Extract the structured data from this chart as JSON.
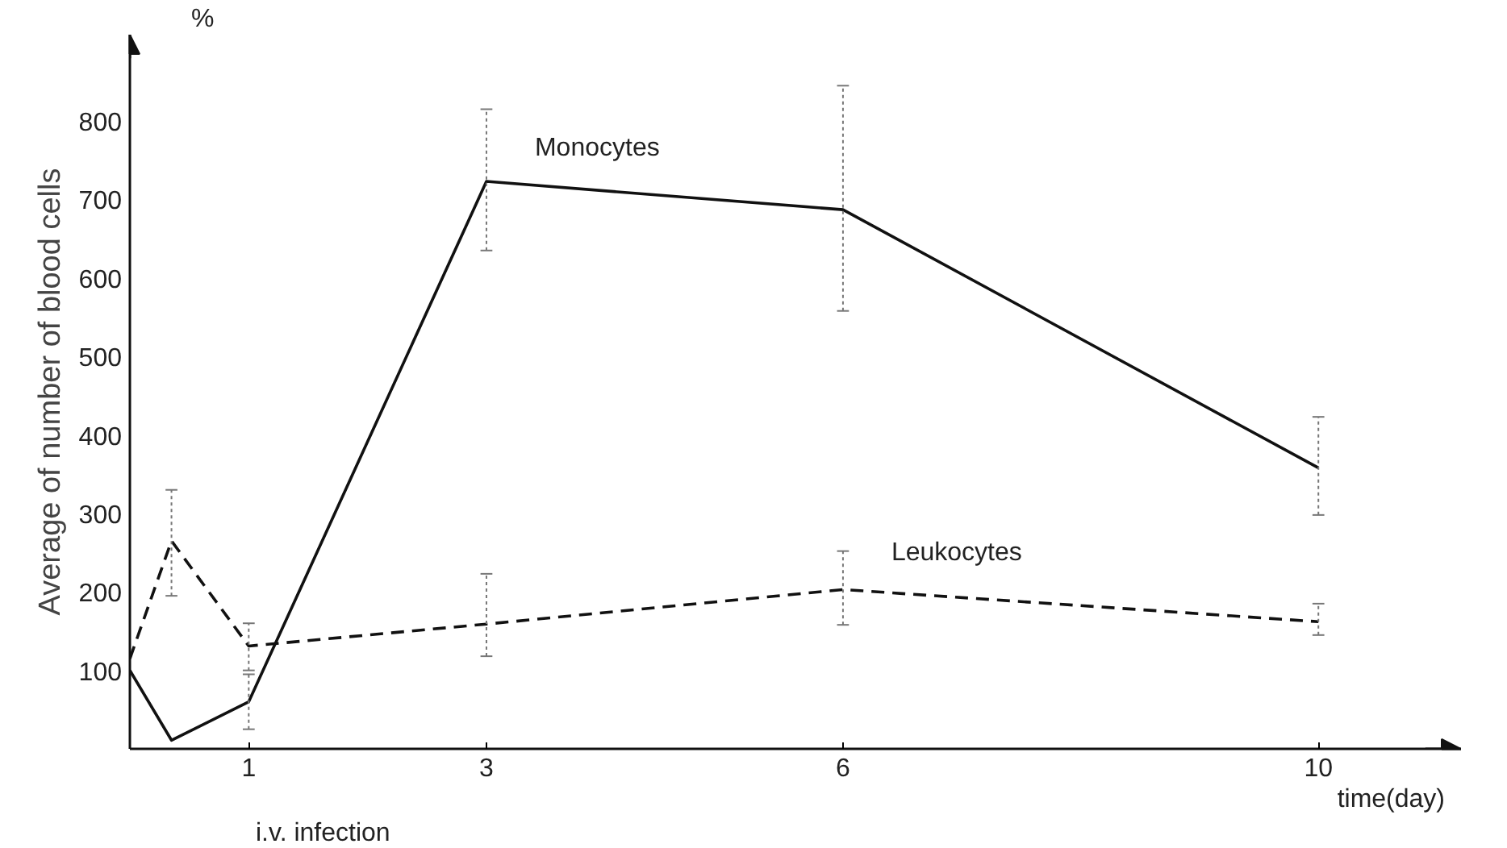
{
  "chart_data": {
    "type": "line",
    "xlabel": "time(day)",
    "ylabel": "Average of number of blood cells",
    "annotations": [
      "%",
      "i.v. infection"
    ],
    "xlim": [
      0,
      11.2
    ],
    "ylim": [
      0,
      910
    ],
    "xticks": [
      1,
      3,
      6,
      10
    ],
    "yticks": [
      100,
      200,
      300,
      400,
      500,
      600,
      700,
      800
    ],
    "grid": false,
    "marker": "none",
    "series": [
      {
        "name": "Monocytes",
        "color": "#111111",
        "line_style": "solid",
        "x": [
          0,
          0.35,
          1,
          3,
          6,
          10
        ],
        "values": [
          100,
          11,
          60,
          723,
          687,
          358
        ],
        "errors": [
          null,
          null,
          [
            25,
            95
          ],
          [
            635,
            815
          ],
          [
            558,
            845
          ],
          [
            298,
            423
          ]
        ]
      },
      {
        "name": "Leukocytes",
        "color": "#111111",
        "line_style": "dashed",
        "x": [
          0,
          0.35,
          1,
          3,
          6,
          10
        ],
        "values": [
          115,
          265,
          131,
          159,
          203,
          162
        ],
        "errors": [
          null,
          [
            195,
            330
          ],
          [
            100,
            160
          ],
          [
            118,
            223
          ],
          [
            158,
            252
          ],
          [
            145,
            185
          ]
        ]
      }
    ]
  }
}
